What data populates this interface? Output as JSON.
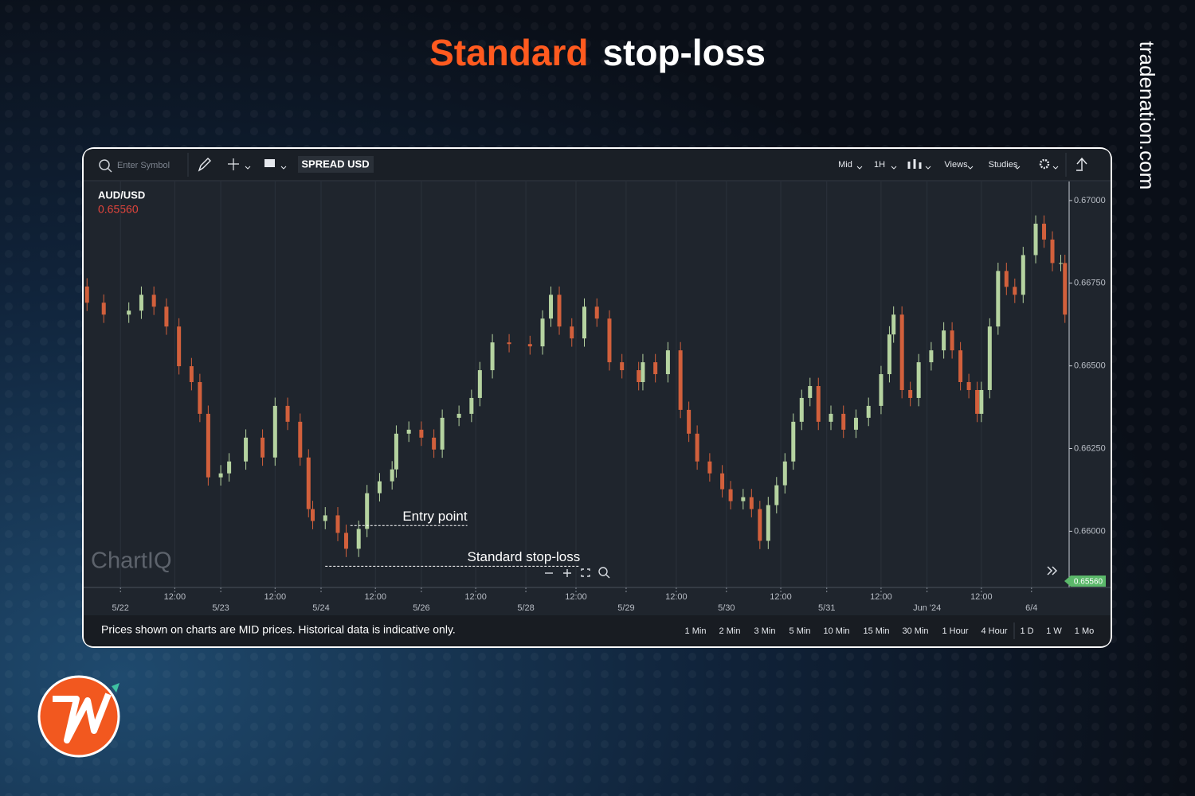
{
  "header": {
    "title_highlight": "Standard",
    "title_rest": "stop-loss",
    "site": "tradenation.com"
  },
  "toolbar": {
    "search_placeholder": "Enter Symbol",
    "spread": "SPREAD USD",
    "items": [
      "Mid",
      "1H",
      "Views",
      "Studies"
    ]
  },
  "chart_data": {
    "type": "candlestick",
    "symbol": "AUD/USD",
    "price": "0.65560",
    "watermark": "ChartIQ",
    "up_color": "#b5d3a0",
    "down_color": "#d2603c",
    "grid": true,
    "x": [
      1,
      5,
      11,
      14,
      17,
      20,
      23,
      26,
      28,
      30,
      33,
      35,
      39,
      43,
      46,
      49,
      52,
      54,
      55,
      58,
      61,
      63,
      66,
      68,
      71,
      74,
      75,
      78,
      81,
      84,
      86,
      90,
      93,
      95,
      98,
      102,
      107,
      110,
      112,
      114,
      117,
      120,
      123,
      126,
      129,
      133,
      134,
      137,
      140,
      143,
      145,
      147,
      150,
      153,
      155,
      158,
      160,
      162,
      164,
      166,
      168,
      170,
      172,
      174,
      176,
      179,
      182,
      185,
      188,
      191,
      193,
      194,
      196,
      198,
      200,
      203,
      206,
      208,
      210,
      212,
      214,
      215,
      217,
      219,
      221,
      223,
      225,
      228,
      230,
      232,
      234,
      235
    ],
    "open": [
      0.6674,
      0.66691,
      0.66655,
      0.66667,
      0.66715,
      0.66679,
      0.66619,
      0.66499,
      0.66451,
      0.66355,
      0.66163,
      0.66175,
      0.66211,
      0.66283,
      0.66223,
      0.66379,
      0.66331,
      0.66223,
      0.66067,
      0.66031,
      0.66048,
      0.65995,
      0.65947,
      0.66007,
      0.66115,
      0.66151,
      0.66187,
      0.66295,
      0.66307,
      0.66283,
      0.66247,
      0.66343,
      0.66355,
      0.66403,
      0.66487,
      0.66571,
      0.66566,
      0.66559,
      0.66643,
      0.66715,
      0.66619,
      0.66583,
      0.66679,
      0.66643,
      0.66511,
      0.66487,
      0.66451,
      0.66511,
      0.66475,
      0.66547,
      0.66367,
      0.66295,
      0.66211,
      0.66175,
      0.66127,
      0.66091,
      0.66103,
      0.66067,
      0.65971,
      0.66079,
      0.66139,
      0.66211,
      0.66331,
      0.66403,
      0.66439,
      0.66331,
      0.66355,
      0.66307,
      0.66343,
      0.66379,
      0.66475,
      0.66595,
      0.66655,
      0.66427,
      0.66403,
      0.66511,
      0.66547,
      0.66607,
      0.66547,
      0.66451,
      0.66427,
      0.66355,
      0.66427,
      0.66619,
      0.66787,
      0.66739,
      0.66715,
      0.66835,
      0.6693,
      0.66882,
      0.66811,
      0.66811
    ],
    "high": [
      0.66765,
      0.66716,
      0.66692,
      0.6674,
      0.6674,
      0.66704,
      0.66644,
      0.66524,
      0.66476,
      0.6638,
      0.662,
      0.66236,
      0.66308,
      0.66308,
      0.66404,
      0.66404,
      0.66356,
      0.66248,
      0.66092,
      0.66073,
      0.66073,
      0.6602,
      0.66032,
      0.6614,
      0.66176,
      0.66212,
      0.6632,
      0.66332,
      0.66332,
      0.66308,
      0.66368,
      0.6638,
      0.66428,
      0.66512,
      0.66596,
      0.66596,
      0.66591,
      0.66668,
      0.6674,
      0.6674,
      0.66644,
      0.66704,
      0.66704,
      0.66668,
      0.66536,
      0.66512,
      0.66536,
      0.66536,
      0.66572,
      0.66572,
      0.66392,
      0.6632,
      0.66236,
      0.662,
      0.66152,
      0.66128,
      0.66128,
      0.66092,
      0.66104,
      0.66164,
      0.66236,
      0.66356,
      0.66428,
      0.66464,
      0.66464,
      0.6638,
      0.6638,
      0.66368,
      0.66404,
      0.665,
      0.6662,
      0.6668,
      0.6668,
      0.66452,
      0.66536,
      0.66572,
      0.66632,
      0.66632,
      0.66572,
      0.66476,
      0.66452,
      0.66452,
      0.66644,
      0.66812,
      0.66812,
      0.66764,
      0.6686,
      0.66955,
      0.66955,
      0.66907,
      0.66836,
      0.66836
    ],
    "low": [
      0.66666,
      0.6663,
      0.6663,
      0.66642,
      0.66654,
      0.66594,
      0.66474,
      0.66426,
      0.6633,
      0.66138,
      0.66138,
      0.6615,
      0.66186,
      0.66198,
      0.66198,
      0.66306,
      0.66198,
      0.66042,
      0.66006,
      0.66006,
      0.6597,
      0.65922,
      0.65922,
      0.65982,
      0.6609,
      0.66126,
      0.66162,
      0.6627,
      0.66258,
      0.66222,
      0.66222,
      0.66318,
      0.6633,
      0.66378,
      0.66462,
      0.66541,
      0.66534,
      0.66534,
      0.66618,
      0.66594,
      0.66558,
      0.66558,
      0.66618,
      0.66486,
      0.66462,
      0.66426,
      0.66426,
      0.6645,
      0.6645,
      0.66342,
      0.6627,
      0.66186,
      0.6615,
      0.66102,
      0.66066,
      0.66066,
      0.66042,
      0.65946,
      0.65946,
      0.66054,
      0.66114,
      0.66186,
      0.66306,
      0.66378,
      0.66306,
      0.66306,
      0.66282,
      0.66282,
      0.66318,
      0.66354,
      0.6645,
      0.6657,
      0.66402,
      0.66378,
      0.66378,
      0.66486,
      0.66522,
      0.66522,
      0.66426,
      0.66402,
      0.6633,
      0.6633,
      0.66402,
      0.66594,
      0.66714,
      0.6669,
      0.6669,
      0.6681,
      0.66857,
      0.66786,
      0.66786,
      0.6663
    ],
    "close": [
      0.66691,
      0.66655,
      0.66667,
      0.66715,
      0.66679,
      0.66619,
      0.66499,
      0.66451,
      0.66355,
      0.66163,
      0.66175,
      0.66211,
      0.66283,
      0.66223,
      0.66379,
      0.66331,
      0.66223,
      0.66067,
      0.66031,
      0.66048,
      0.65995,
      0.65947,
      0.66007,
      0.66115,
      0.66151,
      0.66187,
      0.66295,
      0.66307,
      0.66283,
      0.66247,
      0.66343,
      0.66355,
      0.66403,
      0.66487,
      0.66571,
      0.66566,
      0.66559,
      0.66643,
      0.66715,
      0.66619,
      0.66583,
      0.66679,
      0.66643,
      0.66511,
      0.66487,
      0.66451,
      0.66511,
      0.66475,
      0.66547,
      0.66367,
      0.66295,
      0.66211,
      0.66175,
      0.66127,
      0.66091,
      0.66103,
      0.66067,
      0.65971,
      0.66079,
      0.66139,
      0.66211,
      0.66331,
      0.66403,
      0.66439,
      0.66331,
      0.66355,
      0.66307,
      0.66343,
      0.66379,
      0.66475,
      0.66595,
      0.66655,
      0.66427,
      0.66403,
      0.66511,
      0.66547,
      0.66607,
      0.66547,
      0.66451,
      0.66427,
      0.66355,
      0.66427,
      0.66619,
      0.66787,
      0.66739,
      0.66715,
      0.66835,
      0.6693,
      0.66882,
      0.66811,
      0.66811,
      0.66655
    ],
    "xlim": [
      0,
      236
    ],
    "xticks": [
      {
        "value": 9,
        "label": "5/22"
      },
      {
        "value": 22,
        "label": "12:00"
      },
      {
        "value": 33,
        "label": "5/23"
      },
      {
        "value": 46,
        "label": "12:00"
      },
      {
        "value": 57,
        "label": "5/24"
      },
      {
        "value": 70,
        "label": "12:00"
      },
      {
        "value": 81,
        "label": "5/26"
      },
      {
        "value": 94,
        "label": "12:00"
      },
      {
        "value": 106,
        "label": "5/28"
      },
      {
        "value": 118,
        "label": "12:00"
      },
      {
        "value": 130,
        "label": "5/29"
      },
      {
        "value": 142,
        "label": "12:00"
      },
      {
        "value": 154,
        "label": "5/30"
      },
      {
        "value": 167,
        "label": "12:00"
      },
      {
        "value": 178,
        "label": "5/31"
      },
      {
        "value": 191,
        "label": "12:00"
      },
      {
        "value": 202,
        "label": "Jun '24"
      },
      {
        "value": 215,
        "label": "12:00"
      },
      {
        "value": 227,
        "label": "6/4"
      }
    ],
    "ylim": [
      0.6583,
      0.6706
    ],
    "yticks": [
      {
        "value": 0.67,
        "label": "0.67000"
      },
      {
        "value": 0.6675,
        "label": "0.66750"
      },
      {
        "value": 0.665,
        "label": "0.66500"
      },
      {
        "value": 0.6625,
        "label": "0.66250"
      },
      {
        "value": 0.66,
        "label": "0.66000"
      }
    ],
    "annotations": [
      {
        "label": "Entry point",
        "value": 0.66017
      },
      {
        "label": "Standard stop-loss",
        "value": 0.65894
      }
    ]
  },
  "footer": {
    "note": "Prices shown on charts are MID prices. Historical data is indicative only.",
    "periods": [
      "1 Min",
      "2 Min",
      "3 Min",
      "5 Min",
      "10 Min",
      "15 Min",
      "30 Min",
      "1 Hour",
      "4 Hour",
      "1 D",
      "1 W",
      "1 Mo"
    ]
  }
}
